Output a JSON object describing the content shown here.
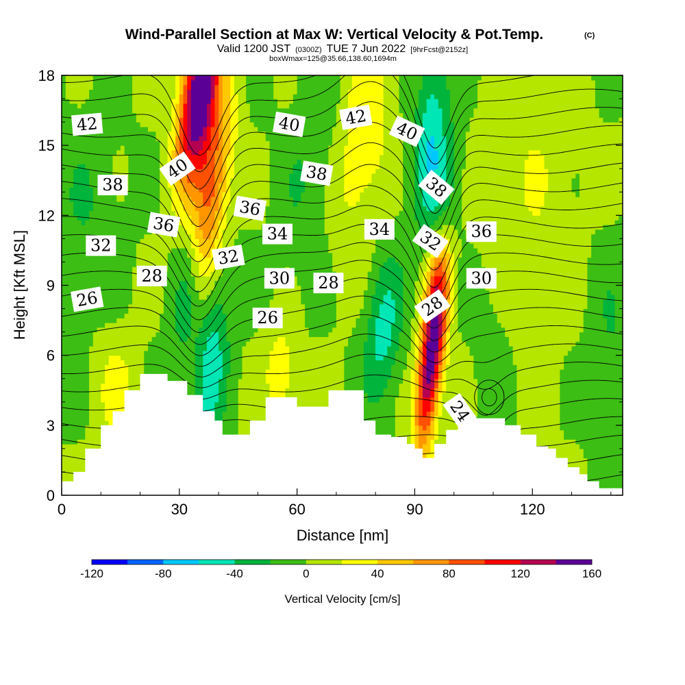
{
  "chart_data": {
    "type": "heatmap",
    "title": "Wind-Parallel Section at Max W: Vertical Velocity & Pot.Temp.",
    "copyright_mark": "(C)",
    "subtitle": {
      "valid_prefix": "Valid 1200 JST",
      "utc": "(0300Z)",
      "valid_suffix": "TUE 7 Jun 2022",
      "forecast": "[9hrFcst@2152z]"
    },
    "box_info": "boxWmax=125@35.66,138.60,1694m",
    "xlabel": "Distance [nm]",
    "ylabel": "Height [Kft MSL]",
    "xlim": [
      0,
      143
    ],
    "ylim": [
      0,
      18
    ],
    "x_ticks": [
      0,
      30,
      60,
      90,
      120
    ],
    "y_ticks": [
      0,
      3,
      6,
      9,
      12,
      15,
      18
    ],
    "colorbar": {
      "label": "Vertical Velocity [cm/s]",
      "min": -120,
      "max": 160,
      "step": 20,
      "tick_labels": [
        "-120",
        "-80",
        "-40",
        "0",
        "40",
        "80",
        "120",
        "160"
      ],
      "tick_values": [
        -120,
        -80,
        -40,
        0,
        40,
        80,
        120,
        160
      ],
      "colors": [
        "#0000ff",
        "#0064ff",
        "#00c8ff",
        "#00e6b4",
        "#00b43c",
        "#3cbe14",
        "#b4e600",
        "#ffff00",
        "#ffc800",
        "#ff9600",
        "#ff5000",
        "#ff0000",
        "#b40050",
        "#5a0096"
      ]
    },
    "vv_sources": [
      {
        "x": 35,
        "z": 17.2,
        "sx": 3.2,
        "sz": 2.6,
        "v": 175,
        "tilt": 0.6
      },
      {
        "x": 38,
        "z": 12.8,
        "sx": 3.2,
        "sz": 3.0,
        "v": 85,
        "tilt": 0.6
      },
      {
        "x": 94,
        "z": 5.6,
        "sx": 2.2,
        "sz": 2.6,
        "v": 150,
        "tilt": 0.5
      },
      {
        "x": 96,
        "z": 9.0,
        "sx": 2.2,
        "sz": 1.8,
        "v": 55,
        "tilt": 0.4
      },
      {
        "x": 77,
        "z": 15.5,
        "sx": 4.5,
        "sz": 3.5,
        "v": 38,
        "tilt": 0.6
      },
      {
        "x": 56,
        "z": 5.3,
        "sx": 3.0,
        "sz": 1.5,
        "v": 35,
        "tilt": 0.0
      },
      {
        "x": 14,
        "z": 4.5,
        "sx": 4.0,
        "sz": 1.8,
        "v": 25,
        "tilt": 0.0
      },
      {
        "x": 38,
        "z": 5.5,
        "sx": 3.0,
        "sz": 3.0,
        "v": -50,
        "tilt": 0.4
      },
      {
        "x": 32,
        "z": 8.5,
        "sx": 2.8,
        "sz": 2.5,
        "v": -35,
        "tilt": 0.4
      },
      {
        "x": 82,
        "z": 7.0,
        "sx": 3.3,
        "sz": 2.2,
        "v": -48,
        "tilt": 0.3
      },
      {
        "x": 94,
        "z": 15.5,
        "sx": 3.0,
        "sz": 2.8,
        "v": -55,
        "tilt": 0.3
      },
      {
        "x": 98,
        "z": 13.0,
        "sx": 3.0,
        "sz": 2.0,
        "v": -30,
        "tilt": 0.3
      },
      {
        "x": 63,
        "z": 14.0,
        "sx": 5.0,
        "sz": 3.5,
        "v": -18,
        "tilt": 0.5
      },
      {
        "x": 120,
        "z": 15.0,
        "sx": 10.0,
        "sz": 3.0,
        "v": 12,
        "tilt": 0.0
      },
      {
        "x": 6,
        "z": 12.0,
        "sx": 6.0,
        "sz": 3.0,
        "v": -18,
        "tilt": 0.0
      },
      {
        "x": 140,
        "z": 6.0,
        "sx": 4.0,
        "sz": 3.0,
        "v": -20,
        "tilt": 0.0
      },
      {
        "x": 110,
        "z": 6.0,
        "sx": 4.0,
        "sz": 3.0,
        "v": -15,
        "tilt": 0.0
      },
      {
        "x": 118,
        "z": 9.0,
        "sx": 8.0,
        "sz": 4.0,
        "v": 12,
        "tilt": 0.0
      }
    ],
    "terrain": {
      "x": [
        0,
        3,
        3,
        6,
        6,
        7,
        7,
        10,
        10,
        13,
        13,
        16,
        16,
        20,
        20,
        27,
        27,
        32,
        32,
        36,
        36,
        39,
        39,
        41,
        41,
        43,
        43,
        48,
        48,
        52,
        52,
        60,
        60,
        66,
        66,
        68,
        68,
        77,
        77,
        80,
        80,
        84,
        84,
        88,
        88,
        90,
        90,
        92,
        92,
        95,
        95,
        98,
        98,
        101,
        101,
        105,
        105,
        113,
        113,
        117,
        117,
        121,
        121,
        124,
        124,
        126,
        126,
        129,
        129,
        132,
        132,
        134,
        134,
        137,
        137,
        141,
        141,
        143
      ],
      "z": [
        0.6,
        0.6,
        1.0,
        1.0,
        2.0,
        2.0,
        2.0,
        2.0,
        3.0,
        3.0,
        3.6,
        3.6,
        4.5,
        4.5,
        5.2,
        5.2,
        4.9,
        4.9,
        4.3,
        4.3,
        3.6,
        3.6,
        3.2,
        3.2,
        2.6,
        2.6,
        2.6,
        2.6,
        3.2,
        3.2,
        4.2,
        4.2,
        3.8,
        3.8,
        3.8,
        3.8,
        4.5,
        4.5,
        3.2,
        3.2,
        2.6,
        2.6,
        2.5,
        2.5,
        2.2,
        2.2,
        2.0,
        2.0,
        1.6,
        1.6,
        2.2,
        2.2,
        2.8,
        2.8,
        3.3,
        3.3,
        3.3,
        3.3,
        3.0,
        3.0,
        2.6,
        2.6,
        2.1,
        2.1,
        2.0,
        2.0,
        1.6,
        1.6,
        1.2,
        1.2,
        0.9,
        0.9,
        0.6,
        0.6,
        0.3,
        0.3,
        0.3,
        0.3
      ]
    },
    "theta_levels": [
      21,
      22,
      23,
      24,
      25,
      26,
      27,
      28,
      29,
      30,
      31,
      32,
      33,
      34,
      35,
      36,
      37,
      38,
      39,
      40,
      41,
      42,
      43
    ],
    "contour_labels": [
      {
        "text": "42",
        "x": 6.5,
        "z": 15.9,
        "angle": -5
      },
      {
        "text": "40",
        "x": 29.5,
        "z": 14.0,
        "angle": -35
      },
      {
        "text": "40",
        "x": 58,
        "z": 15.9,
        "angle": 10
      },
      {
        "text": "42",
        "x": 75,
        "z": 16.2,
        "angle": -10
      },
      {
        "text": "40",
        "x": 88,
        "z": 15.6,
        "angle": 25
      },
      {
        "text": "38",
        "x": 13,
        "z": 13.3,
        "angle": 0
      },
      {
        "text": "38",
        "x": 65,
        "z": 13.8,
        "angle": 10
      },
      {
        "text": "38",
        "x": 95.5,
        "z": 13.2,
        "angle": 40
      },
      {
        "text": "36",
        "x": 26,
        "z": 11.6,
        "angle": 10
      },
      {
        "text": "36",
        "x": 48,
        "z": 12.3,
        "angle": 10
      },
      {
        "text": "36",
        "x": 107,
        "z": 11.3,
        "angle": 0
      },
      {
        "text": "34",
        "x": 55,
        "z": 11.2,
        "angle": 0
      },
      {
        "text": "34",
        "x": 81,
        "z": 11.4,
        "angle": 0
      },
      {
        "text": "32",
        "x": 10,
        "z": 10.7,
        "angle": 0
      },
      {
        "text": "32",
        "x": 42.5,
        "z": 10.2,
        "angle": -10
      },
      {
        "text": "32",
        "x": 94,
        "z": 10.9,
        "angle": 35
      },
      {
        "text": "30",
        "x": 55.5,
        "z": 9.3,
        "angle": 0
      },
      {
        "text": "30",
        "x": 107,
        "z": 9.3,
        "angle": 0
      },
      {
        "text": "28",
        "x": 23,
        "z": 9.4,
        "angle": 0
      },
      {
        "text": "28",
        "x": 68,
        "z": 9.1,
        "angle": 0
      },
      {
        "text": "28",
        "x": 94.5,
        "z": 8.1,
        "angle": -35
      },
      {
        "text": "26",
        "x": 6.5,
        "z": 8.4,
        "angle": -10
      },
      {
        "text": "26",
        "x": 52.5,
        "z": 7.6,
        "angle": 0
      },
      {
        "text": "24",
        "x": 101.5,
        "z": 3.6,
        "angle": 55
      }
    ]
  }
}
